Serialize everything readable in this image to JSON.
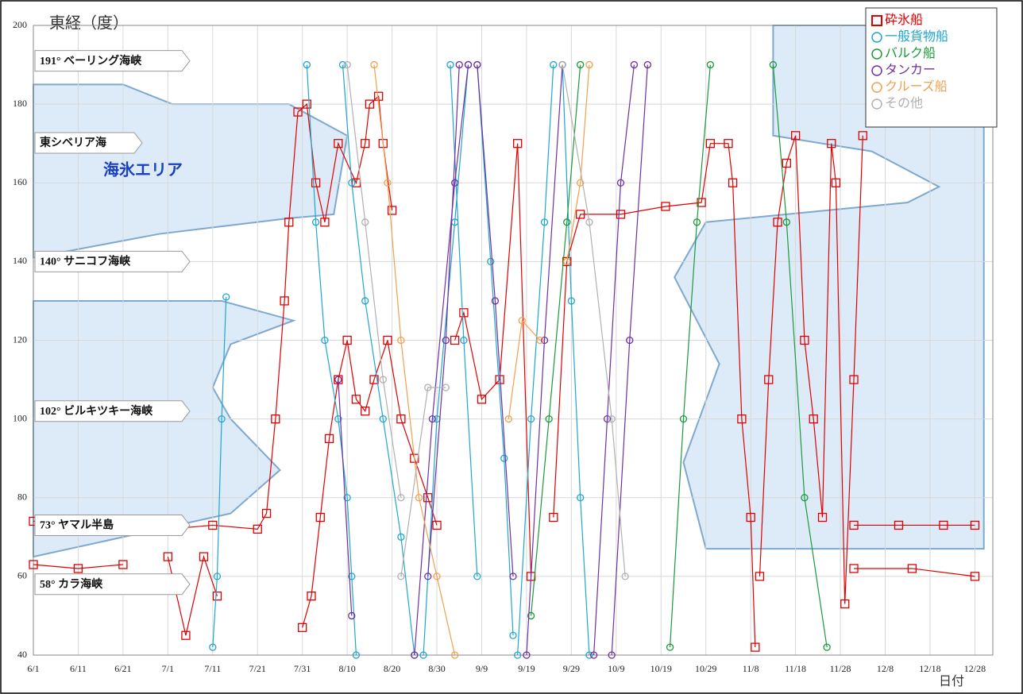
{
  "chart_data": {
    "type": "line",
    "y_label": "東経（度）",
    "x_label": "日付",
    "xlim": [
      "6/1",
      "1/1"
    ],
    "ylim": [
      40,
      200
    ],
    "xticks": [
      "6/1",
      "6/11",
      "6/21",
      "7/1",
      "7/11",
      "7/21",
      "7/31",
      "8/10",
      "8/20",
      "8/30",
      "9/9",
      "9/19",
      "9/29",
      "10/9",
      "10/19",
      "10/29",
      "11/8",
      "11/18",
      "11/28",
      "12/8",
      "12/18",
      "12/28"
    ],
    "yticks": [
      40,
      60,
      80,
      100,
      120,
      140,
      160,
      180,
      200
    ],
    "grid": true,
    "legend": "upper right",
    "ice_label": "海氷エリア",
    "ice_color": "#dcebf7",
    "ice_areas": [
      {
        "x": [
          "6/1",
          "6/21",
          "7/2",
          "7/28",
          "8/10",
          "8/7",
          "7/28",
          "6/29",
          "6/1"
        ],
        "values": [
          185,
          185,
          180,
          180,
          172,
          152,
          151,
          147,
          141
        ]
      },
      {
        "x": [
          "6/1",
          "7/13",
          "7/29",
          "7/15",
          "7/11",
          "7/15",
          "7/26",
          "7/15",
          "6/1"
        ],
        "values": [
          130,
          130,
          125,
          119,
          108,
          100,
          87,
          76,
          65
        ]
      },
      {
        "x": [
          "11/13",
          "12/30",
          "12/30",
          "10/29",
          "10/24",
          "11/1",
          "10/22",
          "10/29",
          "12/13",
          "12/20",
          "12/5",
          "11/13"
        ],
        "values": [
          200,
          200,
          67,
          67,
          89,
          114,
          136,
          150,
          155,
          159,
          168,
          172
        ]
      }
    ],
    "straits": [
      {
        "label": "191° ベーリング海峡",
        "value": 191
      },
      {
        "label": "東シベリア海"
      },
      {
        "label": "140° サニコフ海峡",
        "value": 140
      },
      {
        "label": "102° ビルキツキー海峡",
        "value": 102
      },
      {
        "label": "73° ヤマル半島",
        "value": 73
      },
      {
        "label": "58° カラ海峡",
        "value": 58
      }
    ],
    "series": [
      {
        "name": "砕氷船",
        "color": "#e00000",
        "marker": "square",
        "x": [
          "6/1",
          "6/21",
          "7/1",
          "7/11",
          "7/21",
          "7/23",
          "7/25",
          "7/27",
          "7/28",
          "7/30",
          "8/1",
          "8/3",
          "8/5",
          "8/8",
          "8/12",
          "8/14",
          "8/15",
          "8/17",
          "8/18",
          "8/20",
          null,
          "7/31",
          "8/2",
          "8/4",
          "8/6",
          "8/8",
          "8/10",
          "8/12",
          "8/14",
          "8/16",
          "8/19",
          "8/22",
          "8/25",
          "8/28",
          "8/30",
          null,
          "9/3",
          "9/5",
          "9/9",
          "9/13",
          "9/17",
          "9/20",
          null,
          "9/25",
          "9/28",
          "10/1",
          "10/10",
          "10/20",
          "10/28",
          "10/30",
          "11/3",
          "11/4",
          "11/6",
          "11/8",
          "11/9",
          null,
          "11/10",
          "11/12",
          "11/14",
          "11/16",
          "11/18",
          "11/20",
          "11/22",
          "11/24",
          "11/26",
          "11/27",
          "11/29",
          "12/1",
          "12/3",
          null,
          "6/1",
          "6/11",
          "6/21",
          null,
          "7/1",
          "7/5",
          "7/9",
          "7/12",
          null,
          "12/1",
          "12/11",
          "12/21",
          "12/28",
          null,
          "12/1",
          "12/14",
          "12/28"
        ],
        "values": [
          74,
          74,
          72,
          73,
          72,
          76,
          100,
          130,
          150,
          178,
          180,
          160,
          150,
          170,
          160,
          170,
          180,
          182,
          170,
          153,
          null,
          47,
          55,
          75,
          95,
          110,
          120,
          105,
          102,
          110,
          120,
          100,
          90,
          80,
          73,
          null,
          120,
          127,
          105,
          110,
          170,
          60,
          null,
          75,
          140,
          152,
          152,
          154,
          155,
          170,
          170,
          160,
          100,
          75,
          42,
          null,
          60,
          110,
          150,
          165,
          172,
          120,
          100,
          75,
          170,
          160,
          53,
          110,
          172,
          null,
          63,
          62,
          63,
          null,
          65,
          45,
          65,
          55,
          null,
          73,
          73,
          73,
          73,
          null,
          62,
          62,
          60
        ]
      },
      {
        "name": "一般貨物船",
        "color": "#1fa6d0",
        "marker": "circle",
        "x": [
          "7/11",
          "7/12",
          "7/13",
          "7/14",
          null,
          "8/1",
          "8/3",
          "8/5",
          "8/8",
          "8/10",
          "8/11",
          "8/12",
          null,
          "8/9",
          "8/11",
          "8/14",
          "8/18",
          "8/22",
          "8/25",
          null,
          "8/27",
          "8/30",
          "9/3",
          "9/6",
          null,
          "9/2",
          "9/5",
          "9/8",
          null,
          "9/8",
          "9/11",
          "9/14",
          "9/16",
          null,
          "9/17",
          "9/20",
          "9/23",
          "9/25",
          null,
          "9/27",
          "9/29",
          "10/1",
          "10/3"
        ],
        "values": [
          42,
          60,
          100,
          131,
          null,
          190,
          150,
          120,
          100,
          80,
          60,
          40,
          null,
          190,
          160,
          130,
          100,
          70,
          40,
          null,
          40,
          100,
          150,
          190,
          null,
          190,
          120,
          60,
          null,
          190,
          140,
          90,
          45,
          null,
          40,
          100,
          150,
          190,
          null,
          190,
          130,
          80,
          40
        ]
      },
      {
        "name": "バルク船",
        "color": "#1a9a3a",
        "marker": "circle",
        "x": [
          "9/20",
          "9/24",
          "9/28",
          "10/1",
          null,
          "10/21",
          "10/24",
          "10/27",
          "10/30",
          null,
          "11/13",
          "11/16",
          "11/20",
          "11/25"
        ],
        "values": [
          50,
          100,
          150,
          190,
          null,
          42,
          100,
          150,
          190,
          null,
          190,
          150,
          80,
          42
        ]
      },
      {
        "name": "タンカー",
        "color": "#7030a0",
        "marker": "circle",
        "x": [
          "8/8",
          "8/11",
          null,
          "8/28",
          "9/1",
          "9/4",
          null,
          "8/25",
          "8/29",
          "9/3",
          "9/6",
          null,
          "9/8",
          "9/12",
          "9/16",
          null,
          "9/19",
          "9/23",
          "9/27",
          null,
          "10/4",
          "10/7",
          "10/10",
          "10/13",
          null,
          "10/8",
          "10/12",
          "10/16"
        ],
        "values": [
          110,
          50,
          null,
          60,
          120,
          190,
          null,
          40,
          100,
          160,
          190,
          null,
          190,
          130,
          60,
          null,
          40,
          120,
          190,
          null,
          40,
          100,
          160,
          190,
          null,
          40,
          120,
          190
        ]
      },
      {
        "name": "クルーズ船",
        "color": "#f0a050",
        "marker": "circle",
        "x": [
          "8/16",
          "8/19",
          "8/22",
          "8/26",
          "8/30",
          "9/3",
          null,
          "9/15",
          "9/18",
          "9/22",
          null,
          "9/28",
          "10/1",
          "10/3"
        ],
        "values": [
          190,
          160,
          120,
          80,
          60,
          40,
          null,
          100,
          125,
          120,
          null,
          140,
          160,
          190
        ]
      },
      {
        "name": "その他",
        "color": "#b0b0b0",
        "marker": "circle",
        "x": [
          "8/10",
          "8/14",
          "8/18",
          "8/22",
          null,
          "9/27",
          "10/3",
          "10/8",
          "10/11",
          null,
          "8/22",
          "8/28",
          "9/1"
        ],
        "values": [
          190,
          150,
          110,
          80,
          null,
          190,
          150,
          100,
          60,
          null,
          60,
          108,
          108
        ]
      }
    ]
  }
}
